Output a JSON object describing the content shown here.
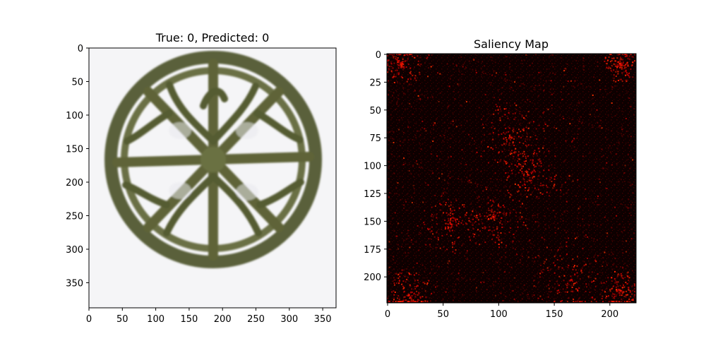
{
  "figure": {
    "panels": [
      {
        "id": "original",
        "title": "True: 0, Predicted: 0",
        "image_description": "a round openwork bronze ornament",
        "x_ticks": [
          "0",
          "50",
          "100",
          "150",
          "200",
          "250",
          "300",
          "350"
        ],
        "y_ticks": [
          "0",
          "50",
          "100",
          "150",
          "200",
          "250",
          "300",
          "350"
        ],
        "x_range": [
          0,
          370
        ],
        "y_range": [
          0,
          388
        ]
      },
      {
        "id": "saliency",
        "title": "Saliency Map",
        "x_ticks": [
          "0",
          "50",
          "100",
          "150",
          "200"
        ],
        "y_ticks": [
          "0",
          "25",
          "50",
          "75",
          "100",
          "125",
          "150",
          "175",
          "200"
        ],
        "x_range": [
          0,
          224
        ],
        "y_range": [
          0,
          224
        ],
        "colormap": "hot"
      }
    ]
  },
  "colors": {
    "bronze": "#5e6437",
    "bronze_dark": "#3a3f20",
    "paper": "#f6f6f8",
    "saliency_bg": "#110000",
    "saliency_hot": "#ff2200"
  }
}
